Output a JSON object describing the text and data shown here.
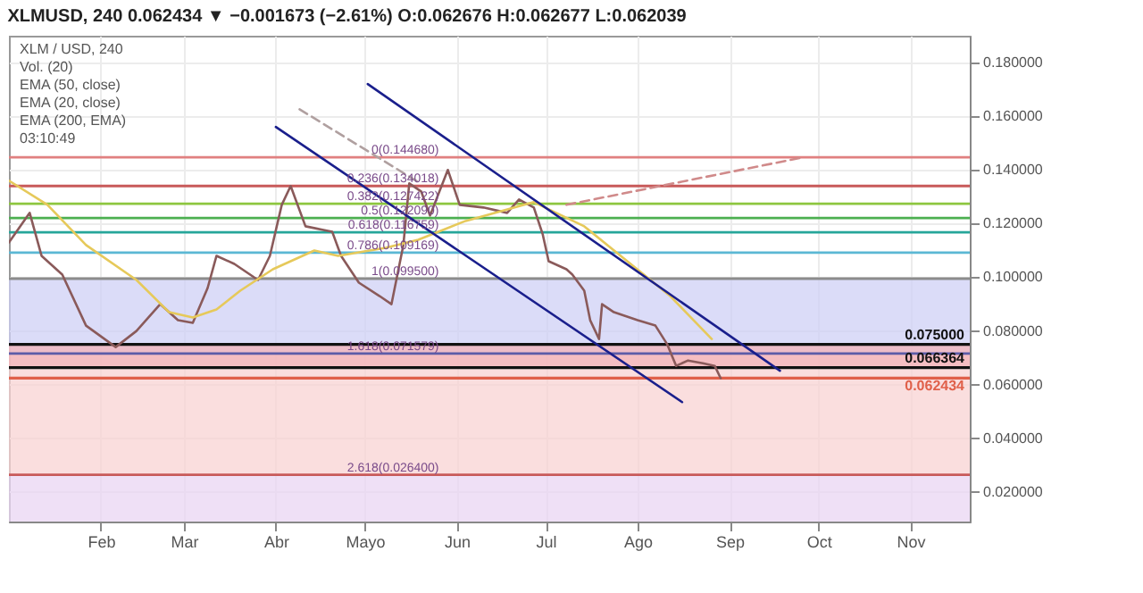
{
  "chart_data": {
    "type": "line",
    "title": "XLMUSD, 240 0.062434 ▼ −0.001673 (−2.61%) O:0.062676 H:0.062677 L:0.062039",
    "annotations": [
      "XLM / USD, 240",
      "Vol. (20)",
      "EMA (50, close)",
      "EMA (20, close)",
      "EMA (200, EMA)",
      "03:10:49",
      {
        "text": "0(0.144680)",
        "x": "--05-26",
        "y": 0.14468
      },
      {
        "text": "0.236(0.134018)",
        "x": "--05-26",
        "y": 0.134018
      },
      {
        "text": "0.382(0.127422)",
        "x": "--05-26",
        "y": 0.127422
      },
      {
        "text": "0.5(0.122090)",
        "x": "--05-26",
        "y": 0.12209
      },
      {
        "text": "0.618(0.116759)",
        "x": "--05-26",
        "y": 0.116759
      },
      {
        "text": "0.786(0.109169)",
        "x": "--05-26",
        "y": 0.109169
      },
      {
        "text": "1(0.099500)",
        "x": "--05-26",
        "y": 0.0995
      },
      {
        "text": "1.618(0.071579)",
        "x": "--05-26",
        "y": 0.071579
      },
      {
        "text": "2.618(0.026400)",
        "x": "--05-26",
        "y": 0.0264
      }
    ],
    "xlim": [
      "--01-01",
      "--11-21"
    ],
    "xticks": [
      {
        "value": "--02-01",
        "label": "Feb"
      },
      {
        "value": "--03-01",
        "label": "Mar"
      },
      {
        "value": "--04-01",
        "label": "Abr"
      },
      {
        "value": "--05-01",
        "label": "Mayo"
      },
      {
        "value": "--06-01",
        "label": "Jun"
      },
      {
        "value": "--07-01",
        "label": "Jul"
      },
      {
        "value": "--08-01",
        "label": "Ago"
      },
      {
        "value": "--09-01",
        "label": "Sep"
      },
      {
        "value": "--10-01",
        "label": "Oct"
      },
      {
        "value": "--11-01",
        "label": "Nov"
      }
    ],
    "ylim": [
      0.009,
      0.19
    ],
    "yticks": [
      {
        "value": 0.02,
        "label": "0.020000"
      },
      {
        "value": 0.04,
        "label": "0.040000"
      },
      {
        "value": 0.06,
        "label": "0.060000"
      },
      {
        "value": 0.08,
        "label": "0.080000"
      },
      {
        "value": 0.1,
        "label": "0.100000"
      },
      {
        "value": 0.12,
        "label": "0.120000"
      },
      {
        "value": 0.14,
        "label": "0.140000"
      },
      {
        "value": 0.16,
        "label": "0.160000"
      },
      {
        "value": 0.18,
        "label": "0.180000"
      }
    ],
    "grid": true,
    "series": [
      {
        "color": "#8a5a5a",
        "x": [
          "--01-01",
          "--01-08",
          "--01-12",
          "--01-19",
          "--01-27",
          "--02-06",
          "--02-13",
          "--02-21",
          "--02-27",
          "--03-04",
          "--03-09",
          "--03-12",
          "--03-18",
          "--03-26",
          "--03-30",
          "--04-03",
          "--04-06",
          "--04-11",
          "--04-20",
          "--04-23",
          "--04-29",
          "--05-06",
          "--05-10",
          "--05-14",
          "--05-16",
          "--05-20",
          "--05-23",
          "--05-29",
          "--06-02",
          "--06-10",
          "--06-18",
          "--06-22",
          "--06-27",
          "--06-30",
          "--07-02",
          "--07-08",
          "--07-10",
          "--07-14",
          "--07-16",
          "--07-19",
          "--07-20",
          "--07-24",
          "--08-01",
          "--08-07",
          "--08-11",
          "--08-14",
          "--08-18",
          "--08-23",
          "--08-27",
          "--08-29"
        ],
        "values": [
          0.113,
          0.124,
          0.108,
          0.101,
          0.082,
          0.074,
          0.08,
          0.09,
          0.084,
          0.083,
          0.096,
          0.108,
          0.105,
          0.099,
          0.108,
          0.127,
          0.134,
          0.119,
          0.117,
          0.108,
          0.098,
          0.093,
          0.09,
          0.112,
          0.135,
          0.132,
          0.123,
          0.14,
          0.127,
          0.126,
          0.124,
          0.129,
          0.126,
          0.116,
          0.106,
          0.103,
          0.101,
          0.095,
          0.084,
          0.077,
          0.09,
          0.087,
          0.084,
          0.082,
          0.075,
          0.067,
          0.069,
          0.068,
          0.067,
          0.0624
        ]
      },
      {
        "color": "#e6c95a",
        "x": [
          "--01-01",
          "--01-14",
          "--01-27",
          "--02-13",
          "--02-24",
          "--03-04",
          "--03-12",
          "--03-20",
          "--03-31",
          "--04-14",
          "--04-22",
          "--05-08",
          "--05-19",
          "--06-04",
          "--06-27",
          "--07-14",
          "--08-12",
          "--08-26"
        ],
        "values": [
          0.136,
          0.127,
          0.112,
          0.099,
          0.087,
          0.085,
          0.088,
          0.095,
          0.103,
          0.11,
          0.108,
          0.111,
          0.114,
          0.121,
          0.128,
          0.119,
          0.093,
          0.077
        ]
      },
      {
        "color": "#1a1f8c",
        "x": [
          "--05-02",
          "--09-18"
        ],
        "values": [
          0.172,
          0.0652
        ]
      },
      {
        "color": "#1a1f8c",
        "x": [
          "--04-01",
          "--08-16"
        ],
        "values": [
          0.156,
          0.0535
        ]
      },
      {
        "color": "#b0a0a0",
        "line_style": "dashed",
        "x": [
          "--04-09",
          "--05-19"
        ],
        "values": [
          0.1626,
          0.1355
        ]
      },
      {
        "color": "#d08a8a",
        "line_style": "dashed",
        "x": [
          "--07-08",
          "--09-25"
        ],
        "values": [
          0.127,
          0.1445
        ]
      }
    ],
    "bands": [
      {
        "axis": "y",
        "from": 0.0995,
        "to": 0.071579,
        "color": "#cfd0f5"
      },
      {
        "axis": "y",
        "from": 0.071579,
        "to": 0.0264,
        "color": "#f8d3d3"
      },
      {
        "axis": "y",
        "from": 0.0264,
        "to": 0.009,
        "color": "#ead6f3"
      },
      {
        "axis": "y",
        "from": 0.075,
        "to": 0.066364,
        "color": "#f3b3b8"
      }
    ],
    "ref_lines": [
      {
        "axis": "y",
        "value": 0.14468,
        "color": "#e08080"
      },
      {
        "axis": "y",
        "value": 0.134018,
        "color": "#c85a5a"
      },
      {
        "axis": "y",
        "value": 0.127422,
        "color": "#8dc63f"
      },
      {
        "axis": "y",
        "value": 0.12209,
        "color": "#4caf50"
      },
      {
        "axis": "y",
        "value": 0.116759,
        "color": "#26a69a"
      },
      {
        "axis": "y",
        "value": 0.109169,
        "color": "#5bb8d4"
      },
      {
        "axis": "y",
        "value": 0.0995,
        "color": "#8c8c8c"
      },
      {
        "axis": "y",
        "value": 0.071579,
        "color": "#5c5ca8"
      },
      {
        "axis": "y",
        "value": 0.0264,
        "color": "#c85a5a"
      },
      {
        "axis": "y",
        "value": 0.075,
        "label": "0.075000",
        "color": "#111111"
      },
      {
        "axis": "y",
        "value": 0.066364,
        "label": "0.066364",
        "color": "#111111"
      },
      {
        "axis": "y",
        "value": 0.062434,
        "label": "0.062434",
        "color": "#e0604a"
      }
    ]
  }
}
